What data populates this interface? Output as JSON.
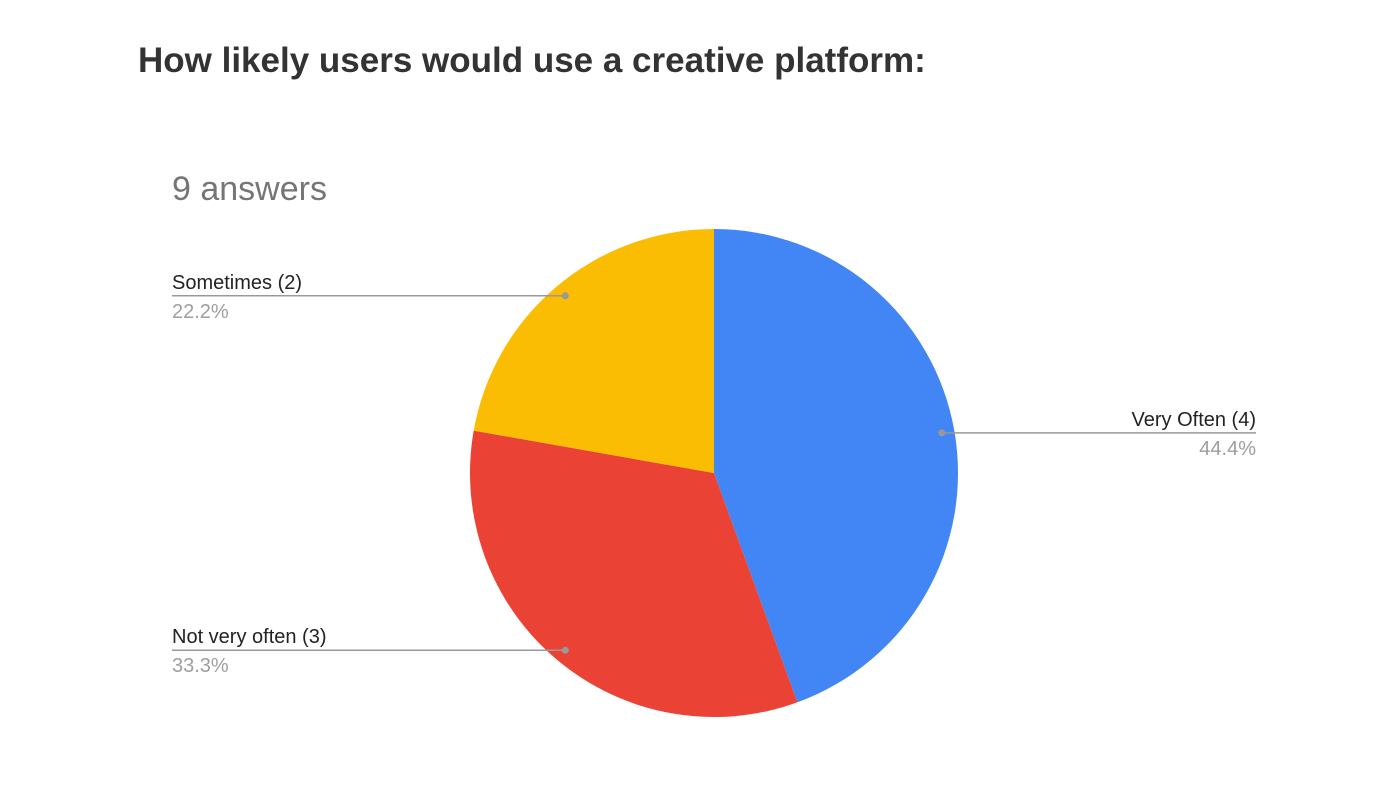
{
  "chart_data": {
    "type": "pie",
    "title": "How likely users would use a creative platform:",
    "subtitle": "9 answers",
    "categories": [
      "Very Often (4)",
      "Not very often (3)",
      "Sometimes (2)"
    ],
    "values": [
      44.4,
      33.3,
      22.2
    ],
    "value_labels": [
      "44.4%",
      "33.3%",
      "22.2%"
    ],
    "colors": [
      "#4285f4",
      "#ea4335",
      "#fbbc04"
    ]
  }
}
